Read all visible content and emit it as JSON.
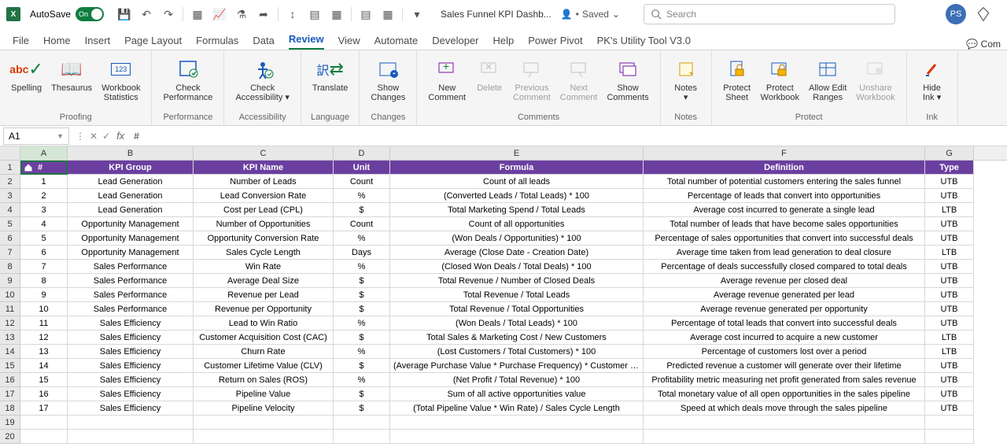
{
  "titlebar": {
    "autosave_label": "AutoSave",
    "toggle_text": "On",
    "doc_title": "Sales Funnel KPI Dashb...",
    "saved": "Saved",
    "search_placeholder": "Search",
    "avatar_initials": "PS"
  },
  "tabs": {
    "items": [
      "File",
      "Home",
      "Insert",
      "Page Layout",
      "Formulas",
      "Data",
      "Review",
      "View",
      "Automate",
      "Developer",
      "Help",
      "Power Pivot",
      "PK's Utility Tool V3.0"
    ],
    "active": "Review",
    "right": "Com"
  },
  "ribbon": {
    "groups": [
      {
        "label": "Proofing",
        "buttons": [
          {
            "label": "Spelling",
            "icon": "abc"
          },
          {
            "label": "Thesaurus",
            "icon": "book"
          },
          {
            "label": "Workbook\nStatistics",
            "icon": "stats"
          }
        ]
      },
      {
        "label": "Performance",
        "buttons": [
          {
            "label": "Check\nPerformance",
            "icon": "perf"
          }
        ]
      },
      {
        "label": "Accessibility",
        "buttons": [
          {
            "label": "Check\nAccessibility ▾",
            "icon": "access"
          }
        ]
      },
      {
        "label": "Language",
        "buttons": [
          {
            "label": "Translate",
            "icon": "trans"
          }
        ]
      },
      {
        "label": "Changes",
        "buttons": [
          {
            "label": "Show\nChanges",
            "icon": "changes"
          }
        ]
      },
      {
        "label": "Comments",
        "buttons": [
          {
            "label": "New\nComment",
            "icon": "newc"
          },
          {
            "label": "Delete",
            "icon": "del",
            "disabled": true
          },
          {
            "label": "Previous\nComment",
            "icon": "prev",
            "disabled": true
          },
          {
            "label": "Next\nComment",
            "icon": "next",
            "disabled": true
          },
          {
            "label": "Show\nComments",
            "icon": "show"
          }
        ]
      },
      {
        "label": "Notes",
        "buttons": [
          {
            "label": "Notes\n▾",
            "icon": "notes"
          }
        ]
      },
      {
        "label": "Protect",
        "buttons": [
          {
            "label": "Protect\nSheet",
            "icon": "psheet"
          },
          {
            "label": "Protect\nWorkbook",
            "icon": "pwb"
          },
          {
            "label": "Allow Edit\nRanges",
            "icon": "ranges"
          },
          {
            "label": "Unshare\nWorkbook",
            "icon": "unshare",
            "disabled": true
          }
        ]
      },
      {
        "label": "Ink",
        "buttons": [
          {
            "label": "Hide\nInk ▾",
            "icon": "ink"
          }
        ]
      }
    ]
  },
  "formula_bar": {
    "name_box": "A1",
    "formula": "#"
  },
  "grid": {
    "columns": [
      "A",
      "B",
      "C",
      "D",
      "E",
      "F",
      "G"
    ],
    "col_widths": {
      "A": 60,
      "B": 160,
      "C": 178,
      "D": 72,
      "E": 322,
      "F": 358,
      "G": 62
    },
    "header_bg": "#6b3fa0",
    "header_fg": "#ffffff",
    "headers": [
      "#",
      "KPI Group",
      "KPI Name",
      "Unit",
      "Formula",
      "Definition",
      "Type"
    ],
    "rows": [
      [
        "1",
        "Lead Generation",
        "Number of Leads",
        "Count",
        "Count of all leads",
        "Total number of potential customers entering the sales funnel",
        "UTB"
      ],
      [
        "2",
        "Lead Generation",
        "Lead Conversion Rate",
        "%",
        "(Converted Leads / Total Leads) * 100",
        "Percentage of leads that convert into opportunities",
        "UTB"
      ],
      [
        "3",
        "Lead Generation",
        "Cost per Lead (CPL)",
        "$",
        "Total Marketing Spend / Total Leads",
        "Average cost incurred to generate a single lead",
        "LTB"
      ],
      [
        "4",
        "Opportunity Management",
        "Number of Opportunities",
        "Count",
        "Count of all opportunities",
        "Total number of leads that have become sales opportunities",
        "UTB"
      ],
      [
        "5",
        "Opportunity Management",
        "Opportunity Conversion Rate",
        "%",
        "(Won Deals / Opportunities) * 100",
        "Percentage of sales opportunities that convert into successful deals",
        "UTB"
      ],
      [
        "6",
        "Opportunity Management",
        "Sales Cycle Length",
        "Days",
        "Average (Close Date - Creation Date)",
        "Average time taken from lead generation to deal closure",
        "LTB"
      ],
      [
        "7",
        "Sales Performance",
        "Win Rate",
        "%",
        "(Closed Won Deals / Total Deals) * 100",
        "Percentage of deals successfully closed compared to total deals",
        "UTB"
      ],
      [
        "8",
        "Sales Performance",
        "Average Deal Size",
        "$",
        "Total Revenue / Number of Closed Deals",
        "Average revenue per closed deal",
        "UTB"
      ],
      [
        "9",
        "Sales Performance",
        "Revenue per Lead",
        "$",
        "Total Revenue / Total Leads",
        "Average revenue generated per lead",
        "UTB"
      ],
      [
        "10",
        "Sales Performance",
        "Revenue per Opportunity",
        "$",
        "Total Revenue / Total Opportunities",
        "Average revenue generated per opportunity",
        "UTB"
      ],
      [
        "11",
        "Sales Efficiency",
        "Lead to Win Ratio",
        "%",
        "(Won Deals / Total Leads) * 100",
        "Percentage of total leads that convert into successful deals",
        "UTB"
      ],
      [
        "12",
        "Sales Efficiency",
        "Customer Acquisition Cost (CAC)",
        "$",
        "Total Sales & Marketing Cost / New Customers",
        "Average cost incurred to acquire a new customer",
        "LTB"
      ],
      [
        "13",
        "Sales Efficiency",
        "Churn Rate",
        "%",
        "(Lost Customers / Total Customers) * 100",
        "Percentage of customers lost over a period",
        "LTB"
      ],
      [
        "14",
        "Sales Efficiency",
        "Customer Lifetime Value (CLV)",
        "$",
        "(Average Purchase Value * Purchase Frequency) * Customer Lifespan",
        "Predicted revenue a customer will generate over their lifetime",
        "UTB"
      ],
      [
        "15",
        "Sales Efficiency",
        "Return on Sales (ROS)",
        "%",
        "(Net Profit / Total Revenue) * 100",
        "Profitability metric measuring net profit generated from sales revenue",
        "UTB"
      ],
      [
        "16",
        "Sales Efficiency",
        "Pipeline Value",
        "$",
        "Sum of all active opportunities value",
        "Total monetary value of all open opportunities in the sales pipeline",
        "UTB"
      ],
      [
        "17",
        "Sales Efficiency",
        "Pipeline Velocity",
        "$",
        "(Total Pipeline Value * Win Rate) / Sales Cycle Length",
        "Speed at which deals move through the sales pipeline",
        "UTB"
      ]
    ],
    "empty_rows": 2
  }
}
